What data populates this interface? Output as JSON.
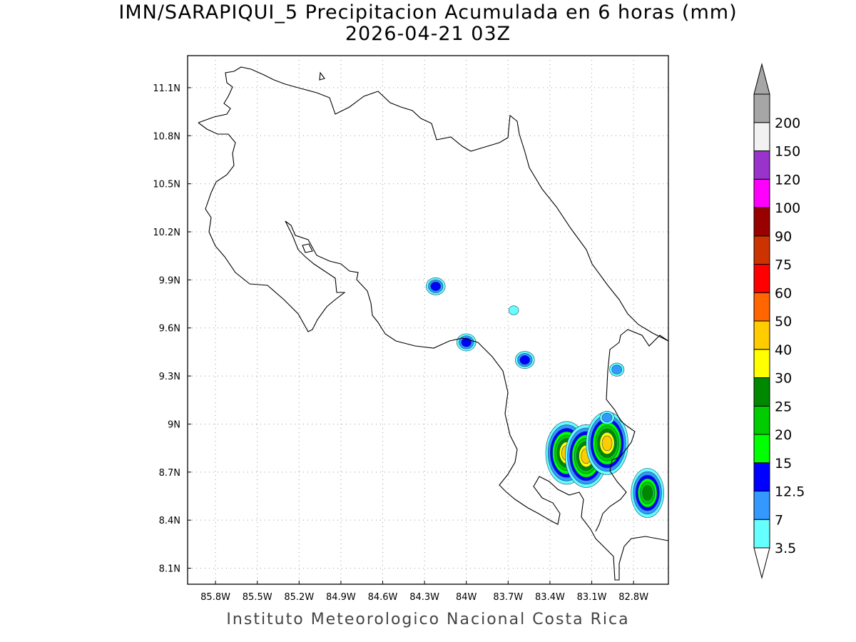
{
  "title": {
    "line1": "IMN/SARAPIQUI_5 Precipitacion Acumulada en 6 horas (mm)",
    "line2": "2026-04-21 03Z"
  },
  "map": {
    "lon_range": [
      -86.0,
      -82.55
    ],
    "lat_range": [
      8.0,
      11.3
    ],
    "lon_ticks": [
      "85.8W",
      "85.5W",
      "85.2W",
      "84.9W",
      "84.6W",
      "84.3W",
      "84W",
      "83.7W",
      "83.4W",
      "83.1W",
      "82.8W"
    ],
    "lat_ticks": [
      "11.1N",
      "10.8N",
      "10.5N",
      "10.2N",
      "9.9N",
      "9.6N",
      "9.3N",
      "9N",
      "8.7N",
      "8.4N",
      "8.1N"
    ],
    "gridlines": "dotted"
  },
  "legend": {
    "levels": [
      {
        "label": "3.5",
        "color": "#66ffff"
      },
      {
        "label": "7",
        "color": "#3399ff"
      },
      {
        "label": "12.5",
        "color": "#0000ff"
      },
      {
        "label": "15",
        "color": "#00ff00"
      },
      {
        "label": "20",
        "color": "#00cc00"
      },
      {
        "label": "25",
        "color": "#008800"
      },
      {
        "label": "30",
        "color": "#ffff00"
      },
      {
        "label": "40",
        "color": "#ffcc00"
      },
      {
        "label": "50",
        "color": "#ff6600"
      },
      {
        "label": "60",
        "color": "#ff0000"
      },
      {
        "label": "75",
        "color": "#cc3300"
      },
      {
        "label": "90",
        "color": "#990000"
      },
      {
        "label": "100",
        "color": "#ff00ff"
      },
      {
        "label": "120",
        "color": "#9933cc"
      },
      {
        "label": "150",
        "color": "#f2f2f2"
      },
      {
        "label": "200",
        "color": "#a6a6a6"
      }
    ],
    "under_color": "#ffffff",
    "over_color": "#a6a6a6"
  },
  "precip_cells": [
    {
      "lon": -84.22,
      "lat": 9.86,
      "max_mm": 12.5
    },
    {
      "lon": -84.0,
      "lat": 9.51,
      "max_mm": 12.5
    },
    {
      "lon": -83.66,
      "lat": 9.71,
      "max_mm": 3.5
    },
    {
      "lon": -83.58,
      "lat": 9.4,
      "max_mm": 12.5
    },
    {
      "lon": -83.28,
      "lat": 8.82,
      "max_mm": 40
    },
    {
      "lon": -83.14,
      "lat": 8.8,
      "max_mm": 40
    },
    {
      "lon": -82.99,
      "lat": 8.88,
      "max_mm": 40
    },
    {
      "lon": -82.92,
      "lat": 9.34,
      "max_mm": 7
    },
    {
      "lon": -82.99,
      "lat": 9.04,
      "max_mm": 7
    },
    {
      "lon": -82.7,
      "lat": 8.57,
      "max_mm": 25
    }
  ],
  "footer": "Instituto Meteorologico Nacional Costa Rica"
}
